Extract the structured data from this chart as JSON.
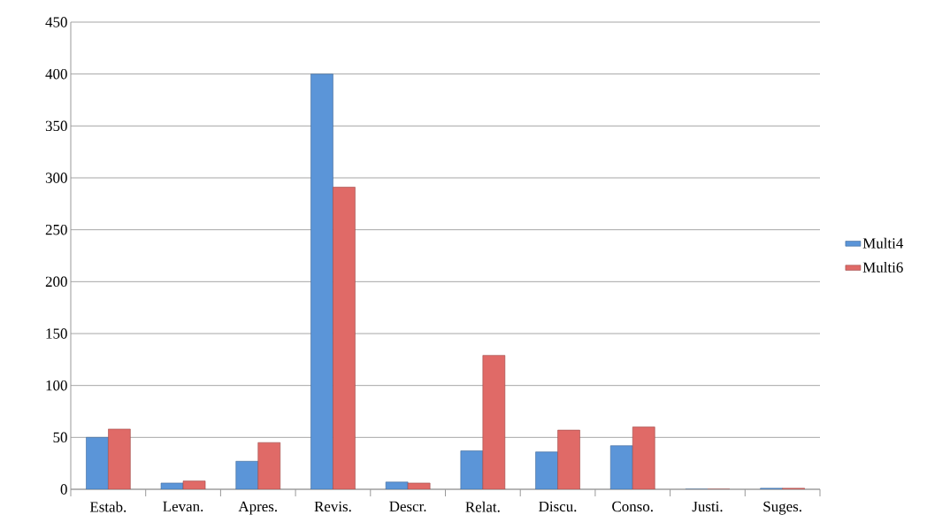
{
  "chart_data": {
    "type": "bar",
    "categories": [
      "Estab.",
      "Levan.",
      "Apres.",
      "Revis.",
      "Descr.",
      "Relat.",
      "Discu.",
      "Conso.",
      "Justi.",
      "Suges."
    ],
    "series": [
      {
        "name": "Multi4",
        "color": "#5b95d8",
        "values": [
          50,
          6,
          27,
          400,
          7,
          37,
          36,
          42,
          0,
          1
        ]
      },
      {
        "name": "Multi6",
        "color": "#e06a67",
        "values": [
          58,
          8,
          45,
          291,
          6,
          129,
          57,
          60,
          0,
          1
        ]
      }
    ],
    "ylim": [
      0,
      450
    ],
    "yticks": [
      0,
      50,
      100,
      150,
      200,
      250,
      300,
      350,
      400,
      450
    ],
    "grid": "y",
    "legend": "right"
  }
}
